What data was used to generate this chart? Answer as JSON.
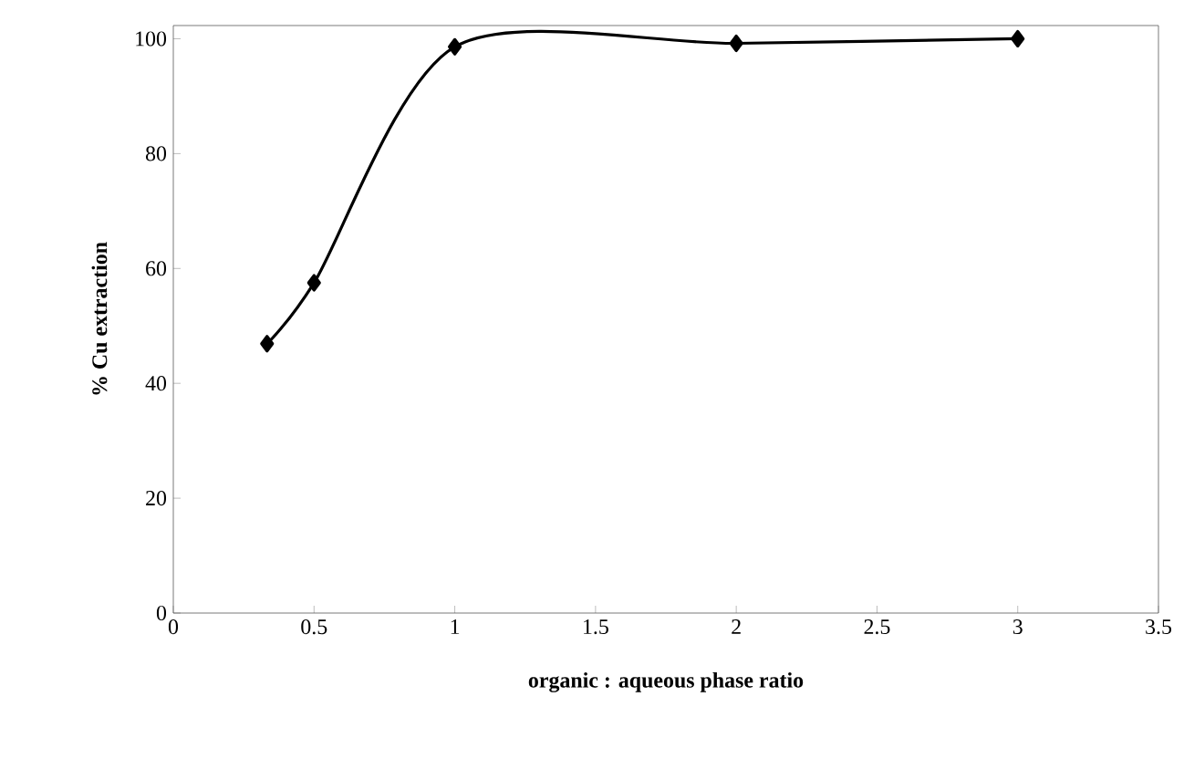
{
  "chart_data": {
    "type": "line",
    "xlabel": "organic : aqueous phase ratio",
    "ylabel": "% Cu extraction",
    "x": [
      0.333,
      0.5,
      1,
      2,
      3
    ],
    "series": [
      {
        "color": "#000000",
        "values": [
          46.9,
          57.5,
          98.6,
          99.2,
          100
        ]
      }
    ],
    "xlim": [
      0,
      3.5
    ],
    "xticks": [
      0,
      0.5,
      1,
      1.5,
      2,
      2.5,
      3,
      3.5
    ],
    "ylim": [
      0,
      102.3
    ],
    "yticks": [
      0,
      20,
      40,
      60,
      80,
      100
    ],
    "marker": "diamond",
    "line_style": "solid"
  }
}
